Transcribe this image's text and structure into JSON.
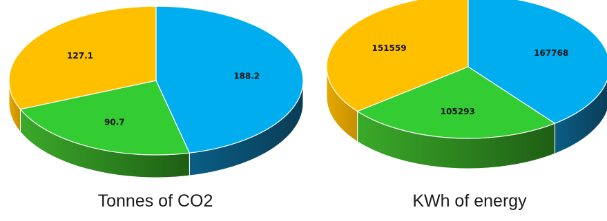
{
  "chart_data": [
    {
      "type": "pie",
      "title": "Tonnes of CO2",
      "values": [
        188.2,
        90.7,
        127.1
      ],
      "labels": [
        "188.2",
        "90.7",
        "127.1"
      ],
      "colors": [
        "#00AEEF",
        "#33CC33",
        "#FFC000"
      ],
      "side_colors": [
        "#0B4A6A",
        "#2E8B1E",
        "#D9A300"
      ]
    },
    {
      "type": "pie",
      "title": "KWh of energy",
      "values": [
        167768,
        105293,
        151559
      ],
      "labels": [
        "167768",
        "105293",
        "151559"
      ],
      "colors": [
        "#00AEEF",
        "#33CC33",
        "#FFC000"
      ],
      "side_colors": [
        "#0B4A6A",
        "#2E8B1E",
        "#D9A300"
      ]
    }
  ]
}
